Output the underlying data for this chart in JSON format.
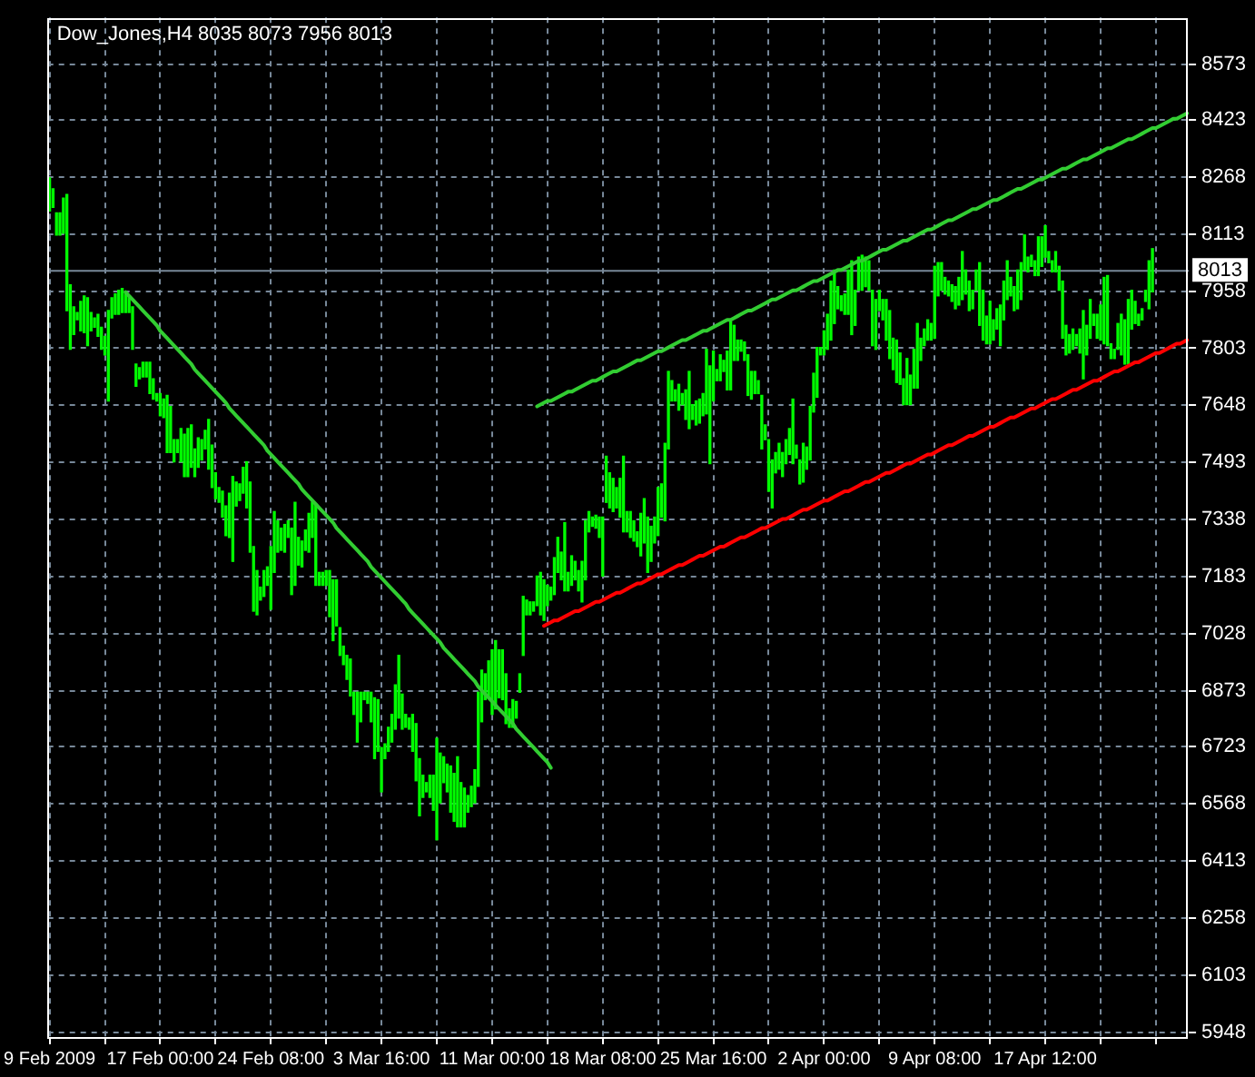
{
  "chart_data": {
    "type": "bar",
    "title": "Dow_Jones,H4 8035 8073 7956 8013",
    "categories": [
      "9 Feb 2009",
      null,
      null,
      null,
      null,
      null,
      null,
      null,
      null,
      null,
      null,
      null,
      null,
      null,
      null,
      null,
      null,
      null,
      null,
      null,
      null,
      null,
      null,
      null,
      null,
      null,
      null,
      null,
      null,
      null,
      null,
      null,
      "17 Feb 00:00",
      null,
      null,
      null,
      null,
      null,
      null,
      null,
      null,
      null,
      null,
      null,
      null,
      null,
      null,
      null,
      null,
      null,
      null,
      null,
      null,
      null,
      null,
      null,
      null,
      null,
      null,
      null,
      null,
      null,
      null,
      null,
      "24 Feb 08:00",
      null,
      null,
      null,
      null,
      null,
      null,
      null,
      null,
      null,
      null,
      null,
      null,
      null,
      null,
      null,
      null,
      null,
      null,
      null,
      null,
      null,
      null,
      null,
      null,
      null,
      null,
      null,
      null,
      null,
      null,
      null,
      "3 Mar 16:00",
      null,
      null,
      null,
      null,
      null,
      null,
      null,
      null,
      null,
      null,
      null,
      null,
      null,
      null,
      null,
      null,
      null,
      null,
      null,
      null,
      null,
      null,
      null,
      null,
      null,
      null,
      null,
      null,
      null,
      null,
      null,
      "11 Mar 00:00",
      null,
      null,
      null,
      null,
      null,
      null,
      null,
      null,
      null,
      null,
      null,
      null,
      null,
      null,
      null,
      null,
      null,
      null,
      null,
      null,
      null,
      null,
      null,
      null,
      null,
      null,
      null,
      null,
      null,
      null,
      null,
      "18 Mar 08:00",
      null,
      null,
      null,
      null,
      null,
      null,
      null,
      null,
      null,
      null,
      null,
      null,
      null,
      null,
      null,
      null,
      null,
      null,
      null,
      null,
      null,
      null,
      null,
      null,
      null,
      null,
      null,
      null,
      null,
      null,
      null,
      "25 Mar 16:00",
      null,
      null,
      null,
      null,
      null,
      null,
      null,
      null,
      null,
      null,
      null,
      null,
      null,
      null,
      null,
      null,
      null,
      null,
      null,
      null,
      null,
      null,
      null,
      null,
      null,
      null,
      null,
      null,
      null,
      null,
      null,
      "2 Apr 00:00",
      null,
      null,
      null,
      null,
      null,
      null,
      null,
      null,
      null,
      null,
      null,
      null,
      null,
      null,
      null,
      null,
      null,
      null,
      null,
      null,
      null,
      null,
      null,
      null,
      null,
      null,
      null,
      null,
      null,
      null,
      null,
      "9 Apr 08:00",
      null,
      null,
      null,
      null,
      null,
      null,
      null,
      null,
      null,
      null,
      null,
      null,
      null,
      null,
      null,
      null,
      null,
      null,
      null,
      null,
      null,
      null,
      null,
      null,
      null,
      null,
      null,
      null,
      null,
      null,
      null,
      "17 Apr 12:00",
      null,
      null,
      null,
      null,
      null,
      null,
      null,
      null,
      null,
      null,
      null,
      null,
      null,
      null,
      null,
      null,
      null,
      null,
      null,
      null,
      null,
      null,
      null,
      null,
      null,
      null,
      null,
      null,
      null,
      null,
      null,
      null,
      null,
      null,
      null,
      null,
      null,
      null,
      null,
      null,
      null
    ],
    "series": [
      {
        "color": "#00ff00",
        "base": [
          8175,
          8185,
          8110,
          8110,
          8115,
          7905,
          7800,
          7840,
          7880,
          7850,
          7845,
          7810,
          7850,
          7860,
          7835,
          7800,
          7785,
          7660,
          7885,
          7895,
          7895,
          7900,
          7900,
          7900,
          7800,
          7700,
          7720,
          7725,
          7725,
          7680,
          7665,
          7660,
          7620,
          7615,
          7520,
          7520,
          7495,
          7520,
          7495,
          7455,
          7455,
          7480,
          7455,
          7480,
          7500,
          7530,
          7475,
          7425,
          7395,
          7385,
          7345,
          7295,
          7290,
          7225,
          7375,
          7390,
          7410,
          7370,
          7250,
          7090,
          7080,
          7120,
          7130,
          7160,
          7095,
          7195,
          7250,
          7255,
          7250,
          7290,
          7135,
          7160,
          7215,
          7210,
          7255,
          7250,
          7290,
          7160,
          7160,
          7160,
          7160,
          7075,
          7010,
          7050,
          6970,
          6945,
          6905,
          6860,
          6810,
          6735,
          6790,
          6850,
          6840,
          6790,
          6690,
          6710,
          6600,
          6690,
          6710,
          6735,
          6770,
          6800,
          6770,
          6775,
          6770,
          6710,
          6630,
          6535,
          6585,
          6600,
          6585,
          6550,
          6470,
          6570,
          6625,
          6600,
          6545,
          6520,
          6505,
          6505,
          6505,
          6545,
          6560,
          6570,
          6615,
          6790,
          6850,
          6855,
          6810,
          6825,
          6855,
          6850,
          6785,
          6775,
          6775,
          6800,
          6870,
          6970,
          7080,
          7080,
          7090,
          7105,
          7080,
          7065,
          7105,
          7120,
          7135,
          7195,
          7175,
          7145,
          7145,
          7160,
          7175,
          7145,
          7115,
          7175,
          7305,
          7320,
          7315,
          7290,
          7185,
          7385,
          7370,
          7360,
          7370,
          7345,
          7305,
          7305,
          7290,
          7280,
          7265,
          7240,
          7275,
          7195,
          7225,
          7275,
          7295,
          7345,
          7335,
          7530,
          7660,
          7660,
          7635,
          7650,
          7610,
          7585,
          7610,
          7595,
          7600,
          7620,
          7625,
          7490,
          7660,
          7715,
          7715,
          7740,
          7690,
          7690,
          7770,
          7770,
          7795,
          7770,
          7675,
          7665,
          7680,
          7680,
          7530,
          7555,
          7415,
          7370,
          7465,
          7475,
          7455,
          7490,
          7515,
          7490,
          7505,
          7435,
          7440,
          7475,
          7500,
          7630,
          7670,
          7785,
          7785,
          7800,
          7825,
          7870,
          7910,
          7905,
          7895,
          7895,
          7840,
          7865,
          7960,
          7960,
          7970,
          7960,
          7810,
          7800,
          7905,
          7880,
          7825,
          7775,
          7745,
          7710,
          7705,
          7650,
          7650,
          7650,
          7695,
          7695,
          7770,
          7810,
          7825,
          7825,
          7830,
          7945,
          7960,
          7950,
          7945,
          7930,
          7910,
          7920,
          7935,
          7950,
          7905,
          7910,
          7960,
          7865,
          7825,
          7815,
          7815,
          7825,
          7855,
          7810,
          7880,
          7935,
          7945,
          7905,
          7910,
          7935,
          8015,
          8010,
          8025,
          8000,
          8000,
          8025,
          8050,
          8035,
          8010,
          8010,
          7960,
          7830,
          7785,
          7790,
          7800,
          7810,
          7790,
          7720,
          7785,
          7830,
          7865,
          7830,
          7825,
          7815,
          7810,
          7775,
          7775,
          7800,
          7785,
          7760,
          7760,
          7855,
          7870,
          7865,
          7880,
          7930,
          7910,
          7956,
          null,
          null,
          null,
          null,
          null,
          null,
          null,
          null,
          null,
          null
        ],
        "values": [
          90,
          50,
          60,
          60,
          95,
          315,
          175,
          75,
          20,
          80,
          100,
          130,
          50,
          25,
          60,
          60,
          50,
          245,
          55,
          55,
          65,
          65,
          55,
          45,
          115,
          60,
          30,
          40,
          40,
          85,
          55,
          20,
          60,
          50,
          155,
          125,
          60,
          35,
          90,
          115,
          130,
          115,
          75,
          80,
          55,
          50,
          135,
          115,
          70,
          40,
          70,
          80,
          120,
          230,
          65,
          45,
          70,
          125,
          190,
          175,
          120,
          35,
          70,
          50,
          170,
          165,
          85,
          60,
          75,
          45,
          180,
          225,
          75,
          70,
          55,
          105,
          95,
          220,
          35,
          35,
          40,
          125,
          165,
          125,
          75,
          50,
          65,
          100,
          60,
          135,
          80,
          20,
          30,
          80,
          165,
          140,
          120,
          40,
          65,
          75,
          120,
          170,
          95,
          35,
          30,
          100,
          155,
          155,
          60,
          25,
          60,
          95,
          275,
          135,
          70,
          75,
          125,
          130,
          190,
          120,
          105,
          45,
          55,
          90,
          255,
          140,
          70,
          100,
          175,
          185,
          130,
          135,
          135,
          50,
          75,
          45,
          50,
          160,
          40,
          35,
          25,
          80,
          115,
          110,
          55,
          35,
          100,
          95,
          75,
          185,
          50,
          80,
          50,
          55,
          110,
          160,
          55,
          25,
          35,
          55,
          160,
          125,
          95,
          90,
          55,
          105,
          205,
          55,
          70,
          55,
          40,
          115,
          120,
          150,
          95,
          70,
          130,
          90,
          210,
          210,
          55,
          30,
          70,
          30,
          80,
          155,
          40,
          65,
          65,
          60,
          175,
          265,
          135,
          30,
          70,
          30,
          105,
          185,
          95,
          55,
          30,
          50,
          110,
          75,
          60,
          35,
          145,
          40,
          140,
          130,
          55,
          70,
          65,
          65,
          70,
          175,
          35,
          65,
          105,
          60,
          145,
          105,
          135,
          20,
          65,
          95,
          160,
          145,
          60,
          40,
          55,
          120,
          200,
          95,
          90,
          95,
          80,
          80,
          150,
          135,
          55,
          55,
          110,
          130,
          85,
          115,
          85,
          70,
          125,
          80,
          105,
          175,
          60,
          45,
          55,
          45,
          195,
          90,
          75,
          45,
          40,
          45,
          60,
          75,
          130,
          65,
          80,
          50,
          55,
          170,
          135,
          75,
          115,
          55,
          55,
          110,
          105,
          105,
          50,
          65,
          105,
          100,
          95,
          40,
          30,
          40,
          105,
          80,
          85,
          30,
          30,
          55,
          65,
          155,
          80,
          50,
          55,
          30,
          65,
          185,
          80,
          105,
          30,
          65,
          95,
          180,
          190,
          40,
          25,
          70,
          110,
          120,
          175,
          105,
          60,
          30,
          30,
          30,
          130,
          117,
          null,
          null,
          null,
          null,
          null,
          null,
          null,
          null,
          null,
          null
        ]
      },
      {
        "type": "line",
        "color": "#32cd32",
        "values": [
          null,
          null,
          null,
          null,
          null,
          null,
          null,
          null,
          null,
          null,
          null,
          null,
          null,
          null,
          null,
          null,
          null,
          null,
          null,
          null,
          null,
          null,
          7955,
          7945,
          7935,
          7925,
          7915,
          7905,
          7895,
          7885,
          7875,
          7865,
          7850,
          7840,
          7830,
          7820,
          7810,
          7800,
          7790,
          7780,
          7770,
          7760,
          7745,
          7735,
          7725,
          7715,
          7705,
          7695,
          7685,
          7675,
          7665,
          7655,
          7640,
          7630,
          7620,
          7610,
          7600,
          7590,
          7580,
          7570,
          7560,
          7550,
          7540,
          7525,
          7515,
          7505,
          7495,
          7485,
          7475,
          7465,
          7455,
          7445,
          7435,
          7420,
          7410,
          7400,
          7390,
          7380,
          7370,
          7360,
          7350,
          7340,
          7330,
          7315,
          7305,
          7295,
          7285,
          7275,
          7265,
          7255,
          7245,
          7235,
          7225,
          7210,
          7200,
          7190,
          7180,
          7170,
          7160,
          7150,
          7140,
          7130,
          7120,
          7110,
          7095,
          7085,
          7075,
          7065,
          7055,
          7045,
          7035,
          7025,
          7015,
          7005,
          6990,
          6980,
          6970,
          6960,
          6950,
          6940,
          6930,
          6920,
          6910,
          6900,
          6885,
          6875,
          6865,
          6855,
          6845,
          6835,
          6825,
          6815,
          6805,
          6795,
          6785,
          6770,
          6760,
          6750,
          6740,
          6730,
          6720,
          6710,
          6700,
          6690,
          6680,
          6665,
          null,
          null,
          null,
          null,
          null,
          null,
          null,
          null,
          null,
          null,
          null,
          null,
          null,
          null,
          null,
          null,
          null,
          null,
          null,
          null,
          null,
          null,
          null,
          null,
          null,
          null,
          null,
          null,
          null,
          null,
          null,
          null,
          null,
          null,
          null,
          null,
          null,
          null,
          null,
          null,
          null,
          null,
          null,
          null,
          null,
          null,
          null,
          null,
          null,
          null,
          null,
          null,
          null,
          null,
          null,
          null,
          null,
          null,
          null,
          null,
          null,
          null,
          null,
          null,
          null,
          null,
          null,
          null,
          null,
          null,
          null,
          null,
          null,
          null,
          null,
          null,
          null,
          null,
          null,
          null,
          null,
          null,
          null,
          null,
          null,
          null,
          null,
          null,
          null,
          null,
          null,
          null,
          null,
          null,
          null,
          null,
          null,
          null,
          null,
          null,
          null,
          null,
          null,
          null,
          null,
          null,
          null,
          null,
          null,
          null,
          null,
          null,
          null,
          null,
          null,
          null,
          null,
          null,
          null,
          null,
          null,
          null,
          null,
          null,
          null,
          null,
          null,
          null,
          null,
          null,
          null,
          null,
          null,
          null,
          null,
          null,
          null,
          null,
          null,
          null,
          null,
          null,
          null,
          null,
          null,
          null,
          null,
          null,
          null,
          null,
          null,
          null,
          null,
          null,
          null,
          null,
          null,
          null,
          null,
          null,
          null,
          null,
          null,
          null,
          null,
          null,
          null,
          null,
          null,
          null,
          null,
          null,
          null,
          null,
          null,
          null,
          null,
          null,
          null,
          null,
          null,
          null,
          null,
          null
        ]
      },
      {
        "type": "line",
        "color": "#32cd32",
        "values": [
          null,
          null,
          null,
          null,
          null,
          null,
          null,
          null,
          null,
          null,
          null,
          null,
          null,
          null,
          null,
          null,
          null,
          null,
          null,
          null,
          null,
          null,
          null,
          null,
          null,
          null,
          null,
          null,
          null,
          null,
          null,
          null,
          null,
          null,
          null,
          null,
          null,
          null,
          null,
          null,
          null,
          null,
          null,
          null,
          null,
          null,
          null,
          null,
          null,
          null,
          null,
          null,
          null,
          null,
          null,
          null,
          null,
          null,
          null,
          null,
          null,
          null,
          null,
          null,
          null,
          null,
          null,
          null,
          null,
          null,
          null,
          null,
          null,
          null,
          null,
          null,
          null,
          null,
          null,
          null,
          null,
          null,
          null,
          null,
          null,
          null,
          null,
          null,
          null,
          null,
          null,
          null,
          null,
          null,
          null,
          null,
          null,
          null,
          null,
          null,
          null,
          null,
          null,
          null,
          null,
          null,
          null,
          null,
          null,
          null,
          null,
          null,
          null,
          null,
          null,
          null,
          null,
          null,
          null,
          null,
          null,
          null,
          null,
          null,
          null,
          null,
          null,
          null,
          null,
          null,
          null,
          null,
          null,
          null,
          null,
          null,
          null,
          null,
          null,
          null,
          null,
          7645,
          7650,
          7655,
          7660,
          7660,
          7665,
          7670,
          7675,
          7680,
          7685,
          7685,
          7690,
          7695,
          7700,
          7705,
          7710,
          7715,
          7715,
          7720,
          7725,
          7730,
          7735,
          7740,
          7740,
          7745,
          7750,
          7755,
          7760,
          7765,
          7770,
          7770,
          7775,
          7780,
          7785,
          7790,
          7795,
          7795,
          7800,
          7805,
          7810,
          7815,
          7820,
          7825,
          7825,
          7830,
          7835,
          7840,
          7845,
          7850,
          7850,
          7855,
          7860,
          7865,
          7870,
          7875,
          7880,
          7880,
          7885,
          7890,
          7895,
          7900,
          7905,
          7905,
          7910,
          7915,
          7920,
          7925,
          7930,
          7935,
          7935,
          7940,
          7945,
          7950,
          7955,
          7960,
          7960,
          7965,
          7970,
          7975,
          7980,
          7985,
          7985,
          7990,
          7995,
          8000,
          8005,
          8010,
          8015,
          8015,
          8020,
          8025,
          8030,
          8035,
          8040,
          8040,
          8045,
          8050,
          8055,
          8060,
          8065,
          8070,
          8070,
          8075,
          8080,
          8085,
          8090,
          8095,
          8095,
          8100,
          8105,
          8110,
          8115,
          8120,
          8125,
          8125,
          8130,
          8135,
          8140,
          8145,
          8150,
          8150,
          8155,
          8160,
          8165,
          8170,
          8175,
          8180,
          8180,
          8185,
          8190,
          8195,
          8200,
          8205,
          8205,
          8210,
          8215,
          8220,
          8225,
          8230,
          8235,
          8235,
          8240,
          8245,
          8250,
          8255,
          8260,
          8260,
          8265,
          8270,
          8275,
          8280,
          8285,
          8290,
          8290,
          8295,
          8300,
          8305,
          8310,
          8315,
          8315,
          8320,
          8325,
          8330,
          8335,
          8340,
          8345,
          8345,
          8350,
          8355,
          8360,
          8365,
          8370,
          8370,
          8375,
          8380,
          8385,
          8390,
          8395,
          8400,
          8400,
          8405,
          8410,
          8415,
          8420,
          8425,
          8425,
          8430,
          8435,
          8440
        ]
      },
      {
        "type": "line",
        "color": "#ff0000",
        "values": [
          null,
          null,
          null,
          null,
          null,
          null,
          null,
          null,
          null,
          null,
          null,
          null,
          null,
          null,
          null,
          null,
          null,
          null,
          null,
          null,
          null,
          null,
          null,
          null,
          null,
          null,
          null,
          null,
          null,
          null,
          null,
          null,
          null,
          null,
          null,
          null,
          null,
          null,
          null,
          null,
          null,
          null,
          null,
          null,
          null,
          null,
          null,
          null,
          null,
          null,
          null,
          null,
          null,
          null,
          null,
          null,
          null,
          null,
          null,
          null,
          null,
          null,
          null,
          null,
          null,
          null,
          null,
          null,
          null,
          null,
          null,
          null,
          null,
          null,
          null,
          null,
          null,
          null,
          null,
          null,
          null,
          null,
          null,
          null,
          null,
          null,
          null,
          null,
          null,
          null,
          null,
          null,
          null,
          null,
          null,
          null,
          null,
          null,
          null,
          null,
          null,
          null,
          null,
          null,
          null,
          null,
          null,
          null,
          null,
          null,
          null,
          null,
          null,
          null,
          null,
          null,
          null,
          null,
          null,
          null,
          null,
          null,
          null,
          null,
          null,
          null,
          null,
          null,
          null,
          null,
          null,
          null,
          null,
          null,
          null,
          null,
          null,
          null,
          null,
          null,
          null,
          null,
          null,
          7050,
          7055,
          7060,
          7065,
          7065,
          7070,
          7075,
          7080,
          7085,
          7090,
          7090,
          7095,
          7100,
          7105,
          7110,
          7115,
          7115,
          7120,
          7125,
          7130,
          7135,
          7140,
          7140,
          7145,
          7150,
          7155,
          7160,
          7165,
          7165,
          7170,
          7175,
          7180,
          7185,
          7190,
          7190,
          7195,
          7200,
          7205,
          7210,
          7215,
          7215,
          7220,
          7225,
          7230,
          7235,
          7240,
          7240,
          7245,
          7250,
          7255,
          7260,
          7265,
          7265,
          7270,
          7275,
          7280,
          7285,
          7290,
          7290,
          7295,
          7300,
          7305,
          7310,
          7315,
          7315,
          7320,
          7325,
          7330,
          7335,
          7340,
          7340,
          7345,
          7350,
          7355,
          7360,
          7365,
          7365,
          7370,
          7375,
          7380,
          7385,
          7390,
          7390,
          7395,
          7400,
          7405,
          7410,
          7415,
          7415,
          7420,
          7425,
          7430,
          7435,
          7440,
          7440,
          7445,
          7450,
          7455,
          7460,
          7465,
          7465,
          7470,
          7475,
          7480,
          7485,
          7490,
          7490,
          7495,
          7500,
          7505,
          7510,
          7515,
          7515,
          7520,
          7525,
          7530,
          7535,
          7540,
          7540,
          7545,
          7550,
          7555,
          7560,
          7565,
          7565,
          7570,
          7575,
          7580,
          7585,
          7590,
          7590,
          7595,
          7600,
          7605,
          7610,
          7615,
          7615,
          7620,
          7625,
          7630,
          7635,
          7640,
          7640,
          7645,
          7650,
          7655,
          7660,
          7665,
          7665,
          7670,
          7675,
          7680,
          7685,
          7690,
          7690,
          7695,
          7700,
          7705,
          7710,
          7715,
          7715,
          7720,
          7725,
          7730,
          7735,
          7740,
          7740,
          7745,
          7750,
          7755,
          7760,
          7765,
          7765,
          7770,
          7775,
          7780,
          7785,
          7790,
          7790,
          7795,
          7800,
          7805,
          7810,
          7815,
          7815,
          7820,
          7825
        ]
      }
    ],
    "ylim": [
      5935,
      8700
    ],
    "yticks": [
      5948,
      6103,
      6258,
      6413,
      6568,
      6723,
      6873,
      7028,
      7183,
      7338,
      7493,
      7648,
      7803,
      7958,
      8113,
      8268,
      8423,
      8573
    ],
    "grid": true,
    "ref_lines": [
      {
        "axis": "y",
        "value": 8013,
        "label": "8013",
        "color": "#778899"
      }
    ]
  }
}
